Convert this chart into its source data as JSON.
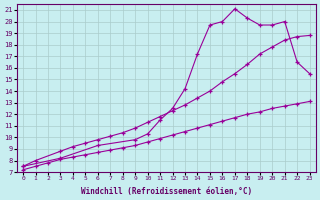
{
  "xlabel": "Windchill (Refroidissement éolien,°C)",
  "bg_color": "#c8eef0",
  "line_color": "#990099",
  "xlim": [
    -0.5,
    23.5
  ],
  "ylim": [
    7,
    21.5
  ],
  "xticks": [
    0,
    1,
    2,
    3,
    4,
    5,
    6,
    7,
    8,
    9,
    10,
    11,
    12,
    13,
    14,
    15,
    16,
    17,
    18,
    19,
    20,
    21,
    22,
    23
  ],
  "yticks": [
    7,
    8,
    9,
    10,
    11,
    12,
    13,
    14,
    15,
    16,
    17,
    18,
    19,
    20,
    21
  ],
  "curve1_x": [
    0,
    1,
    2,
    3,
    4,
    5,
    6,
    7,
    8,
    9,
    10,
    11,
    12,
    13,
    14,
    15,
    16,
    17,
    18,
    19,
    20,
    21,
    22,
    23
  ],
  "curve1_y": [
    7.2,
    7.5,
    7.8,
    8.1,
    8.3,
    8.5,
    8.7,
    8.9,
    9.1,
    9.3,
    9.6,
    9.9,
    10.2,
    10.5,
    10.8,
    11.1,
    11.4,
    11.7,
    12.0,
    12.2,
    12.5,
    12.7,
    12.9,
    13.1
  ],
  "curve2_x": [
    0,
    1,
    3,
    4,
    5,
    6,
    7,
    8,
    9,
    10,
    11,
    12,
    13,
    14,
    15,
    16,
    17,
    18,
    19,
    20,
    21,
    22,
    23
  ],
  "curve2_y": [
    7.5,
    8.0,
    8.8,
    9.2,
    9.5,
    9.8,
    10.1,
    10.4,
    10.8,
    11.3,
    11.8,
    12.3,
    12.8,
    13.4,
    14.0,
    14.8,
    15.5,
    16.3,
    17.2,
    17.8,
    18.4,
    18.7,
    18.8
  ],
  "curve3_x": [
    0,
    3,
    6,
    9,
    10,
    11,
    12,
    13,
    14,
    15,
    16,
    17,
    18,
    19,
    20,
    21,
    22,
    23
  ],
  "curve3_y": [
    7.5,
    8.2,
    9.3,
    9.8,
    10.3,
    11.5,
    12.5,
    14.2,
    17.2,
    19.7,
    20.0,
    21.1,
    20.3,
    19.7,
    19.7,
    20.0,
    16.5,
    15.5
  ]
}
